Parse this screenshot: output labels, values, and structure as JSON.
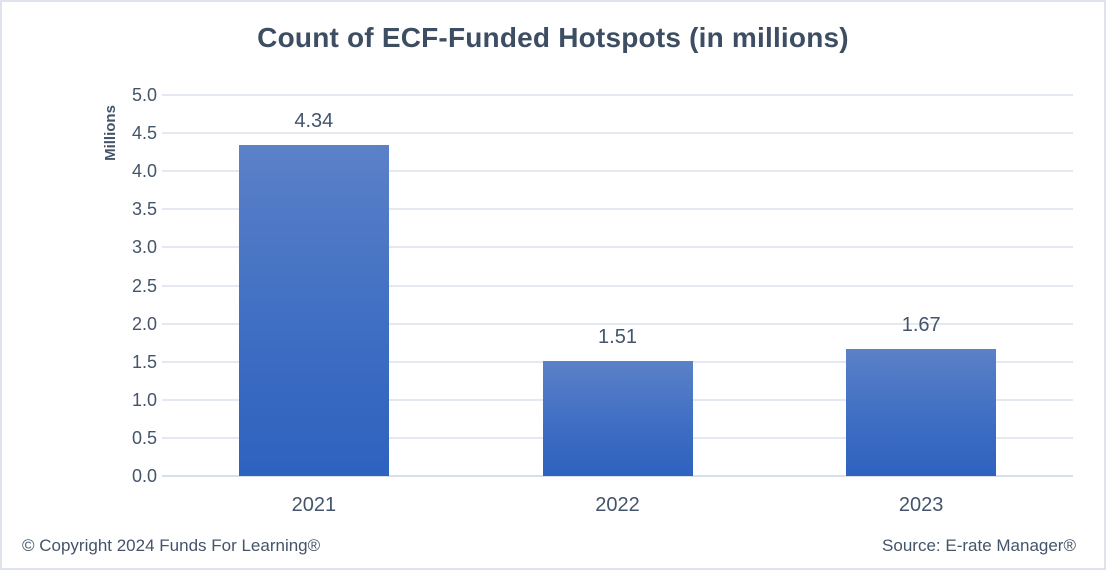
{
  "chart_data": {
    "type": "bar",
    "title": "Count of ECF-Funded Hotspots (in millions)",
    "xlabel": "",
    "ylabel": "Millions",
    "categories": [
      "2021",
      "2022",
      "2023"
    ],
    "values": [
      4.34,
      1.51,
      1.67
    ],
    "data_labels": [
      "4.34",
      "1.51",
      "1.67"
    ],
    "ylim": [
      0,
      5
    ],
    "ytick_labels": [
      "0.0",
      "0.5",
      "1.0",
      "1.5",
      "2.0",
      "2.5",
      "3.0",
      "3.5",
      "4.0",
      "4.5",
      "5.0"
    ],
    "grid": true,
    "legend": "none"
  },
  "colors": {
    "bar_gradient_top": "#5b81c8",
    "bar_gradient_bottom": "#2d62bf",
    "title_text": "#3d4e63",
    "axis_text": "#44546a",
    "gridline": "#e4e8f0",
    "baseline": "#d8deea",
    "frame_border": "#dfe4ec",
    "background": "#ffffff"
  },
  "footer": {
    "copyright": "© Copyright 2024 Funds For Learning®",
    "source": "Source: E-rate Manager®"
  }
}
